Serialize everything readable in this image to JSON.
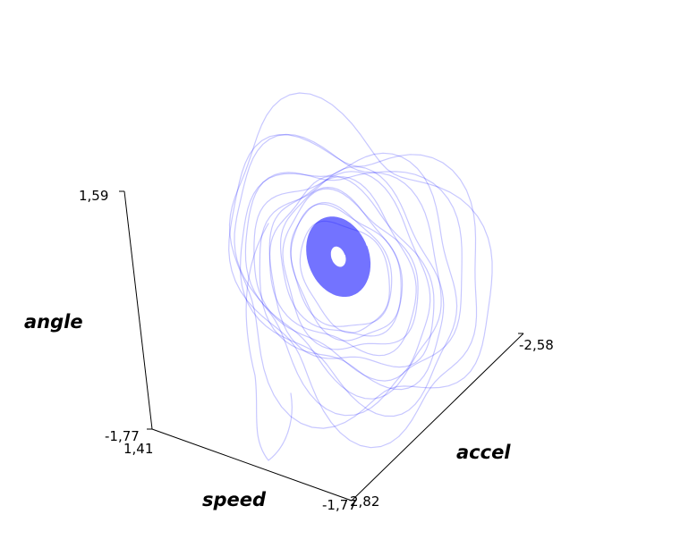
{
  "chart_data": {
    "type": "line",
    "projection": "3d",
    "axes": {
      "angle": {
        "title": "angle",
        "min_label": "-1,77",
        "max_label": "1,59",
        "range": [
          -1.77,
          1.59
        ]
      },
      "speed": {
        "title": "speed",
        "min_label": "1,41",
        "max_label": "-1,77",
        "range": [
          1.41,
          -1.77
        ]
      },
      "accel": {
        "title": "accel",
        "min_label": "2,82",
        "max_label": "-2,58",
        "range": [
          2.82,
          -2.58
        ]
      }
    },
    "series": [
      {
        "color": "#0000ff",
        "style": "spiral trajectory converging to a dense core near the origin",
        "approx_center": {
          "angle": 0.3,
          "speed": 0.0,
          "accel": 0.0
        }
      }
    ],
    "grid": false,
    "legend": "none"
  }
}
